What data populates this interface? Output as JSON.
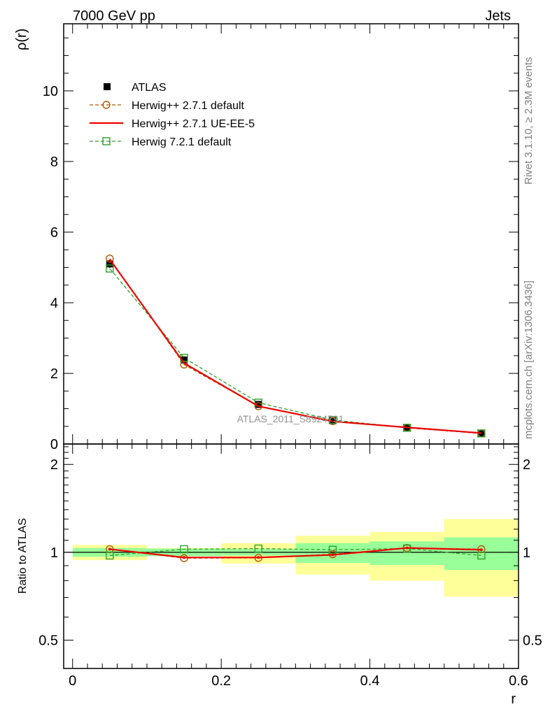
{
  "header": {
    "left_title": "7000 GeV pp",
    "right_title": "Jets"
  },
  "side_labels": {
    "rivet": "Rivet 3.1.10, ≥ 2.3M events",
    "mcplots": "mcplots.cern.ch [arXiv:1306.3436]"
  },
  "watermark": "ATLAS_2011_S8924791",
  "chart_data": [
    {
      "type": "line",
      "ylabel": "ρ(r)",
      "xlim": [
        -0.012,
        0.6
      ],
      "ylim": [
        0,
        11.9
      ],
      "y_ticks": [
        0,
        2,
        4,
        6,
        8,
        10
      ],
      "y_tick_labels": [
        "0",
        "2",
        "4",
        "6",
        "8",
        "10"
      ],
      "legend_position": "top-left",
      "x": [
        0.05,
        0.15,
        0.25,
        0.35,
        0.45,
        0.55
      ],
      "series": [
        {
          "name": "ATLAS",
          "color": "#000000",
          "marker": "filled-square",
          "values": [
            5.1,
            2.38,
            1.12,
            0.66,
            0.45,
            0.3
          ],
          "errors": [
            0.11,
            0.05,
            0.03,
            0.02,
            0.01,
            0.01
          ]
        },
        {
          "name": "Herwig++ 2.7.1 default",
          "color": "#b35900",
          "marker": "open-circle",
          "linestyle": "dashed",
          "values": [
            5.25,
            2.25,
            1.07,
            0.65,
            0.46,
            0.3
          ]
        },
        {
          "name": "Herwig++ 2.7.1 UE-EE-5",
          "color": "#ee0000",
          "marker": "none",
          "linestyle": "solid",
          "values": [
            5.23,
            2.29,
            1.07,
            0.64,
            0.47,
            0.31
          ]
        },
        {
          "name": "Herwig 7.2.1 default",
          "color": "#2ca02c",
          "marker": "open-square",
          "linestyle": "dashed",
          "values": [
            4.97,
            2.44,
            1.17,
            0.68,
            0.46,
            0.3
          ]
        }
      ]
    },
    {
      "type": "line",
      "ylabel": "Ratio to ATLAS",
      "xlabel": "r",
      "xlim": [
        -0.012,
        0.6
      ],
      "ylim": [
        0.4,
        2.35
      ],
      "y_scale": "log",
      "y_ticks": [
        0.5,
        1,
        2
      ],
      "y_tick_labels": [
        "0.5",
        "1",
        "2"
      ],
      "x_ticks": [
        0,
        0.2,
        0.4,
        0.6
      ],
      "x_tick_labels": [
        "0",
        "0.2",
        "0.4",
        "0.6"
      ],
      "x": [
        0.05,
        0.15,
        0.25,
        0.35,
        0.45,
        0.55
      ],
      "bins": [
        [
          0.0,
          0.1
        ],
        [
          0.1,
          0.2
        ],
        [
          0.2,
          0.3
        ],
        [
          0.3,
          0.4
        ],
        [
          0.4,
          0.5
        ],
        [
          0.5,
          0.6
        ]
      ],
      "band_inner": {
        "color": "#99ff99",
        "low": [
          0.965,
          0.97,
          0.975,
          0.92,
          0.905,
          0.87
        ],
        "high": [
          1.035,
          1.03,
          1.025,
          1.075,
          1.09,
          1.125
        ]
      },
      "band_outer": {
        "color": "#ffff99",
        "low": [
          0.94,
          0.97,
          0.915,
          0.84,
          0.8,
          0.705
        ],
        "high": [
          1.06,
          1.035,
          1.075,
          1.14,
          1.175,
          1.3
        ]
      },
      "series": [
        {
          "name": "Herwig++ 2.7.1 default",
          "color": "#b35900",
          "marker": "open-circle",
          "linestyle": "dashed",
          "values": [
            1.025,
            0.955,
            0.957,
            0.985,
            1.035,
            1.025
          ]
        },
        {
          "name": "Herwig++ 2.7.1 UE-EE-5",
          "color": "#ee0000",
          "marker": "none",
          "linestyle": "solid",
          "values": [
            1.025,
            0.96,
            0.96,
            0.98,
            1.035,
            1.02
          ]
        },
        {
          "name": "Herwig 7.2.1 default",
          "color": "#2ca02c",
          "marker": "open-square",
          "linestyle": "dashed",
          "values": [
            0.975,
            1.025,
            1.03,
            1.02,
            1.03,
            0.975
          ]
        }
      ]
    }
  ]
}
